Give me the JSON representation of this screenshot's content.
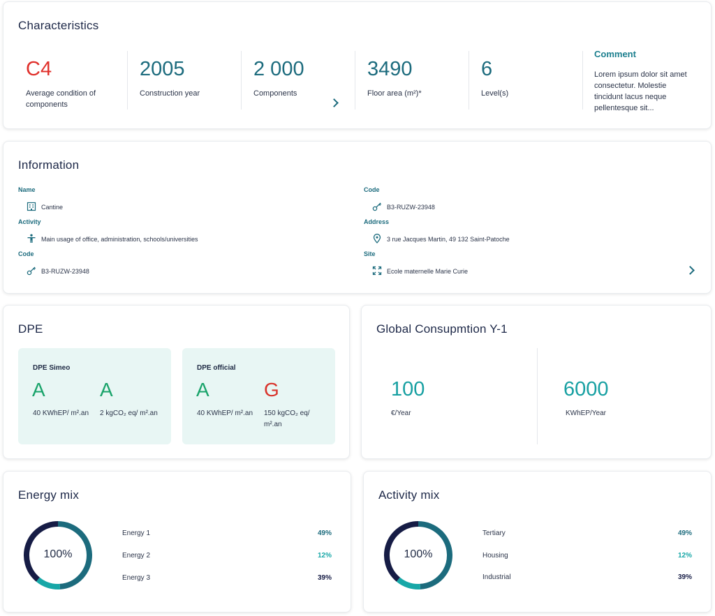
{
  "characteristics": {
    "title": "Characteristics",
    "stats": [
      {
        "value": "C4",
        "label": "Average condition of components"
      },
      {
        "value": "2005",
        "label": "Construction year"
      },
      {
        "value": "2 000",
        "label": "Components"
      },
      {
        "value": "3490",
        "label": "Floor area (m²)*"
      },
      {
        "value": "6",
        "label": "Level(s)"
      }
    ],
    "comment_title": "Comment",
    "comment_text": "Lorem ipsum dolor sit amet consectetur. Molestie tincidunt lacus neque pellentesque sit..."
  },
  "information": {
    "title": "Information",
    "left": [
      {
        "label": "Name",
        "value": "Cantine",
        "icon": "building-icon"
      },
      {
        "label": "Activity",
        "value": "Main usage of office, administration, schools/universities",
        "icon": "person-icon"
      },
      {
        "label": "Code",
        "value": "B3-RUZW-23948",
        "icon": "key-icon"
      }
    ],
    "right": [
      {
        "label": "Code",
        "value": "B3-RUZW-23948",
        "icon": "key-icon"
      },
      {
        "label": "Address",
        "value": "3 rue Jacques Martin, 49 132 Saint-Patoche",
        "icon": "location-pin-icon"
      },
      {
        "label": "Site",
        "value": "Ecole maternelle Marie Curie",
        "icon": "expand-icon"
      }
    ]
  },
  "dpe": {
    "title": "DPE",
    "boxes": [
      {
        "title": "DPE Simeo",
        "grade1": "A",
        "sub1": "40 KWhEP/ m².an",
        "grade2": "A",
        "sub2": "2 kgCO₂ eq/ m².an"
      },
      {
        "title": "DPE official",
        "grade1": "A",
        "sub1": "40 KWhEP/ m².an",
        "grade2": "G",
        "sub2": "150 kgCO₂ eq/ m².an"
      }
    ]
  },
  "consumption": {
    "title": "Global Consupmtion Y-1",
    "items": [
      {
        "value": "100",
        "label": "€/Year"
      },
      {
        "value": "6000",
        "label": "KWhEP/Year"
      }
    ]
  },
  "energy_mix": {
    "title": "Energy mix",
    "center": "100%",
    "items": [
      {
        "name": "Energy 1",
        "pct": "49%",
        "fraction": 0.49,
        "color": "#1c6b7d"
      },
      {
        "name": "Energy 2",
        "pct": "12%",
        "fraction": 0.12,
        "color": "#17a7a7"
      },
      {
        "name": "Energy 3",
        "pct": "39%",
        "fraction": 0.39,
        "color": "#161c45"
      }
    ]
  },
  "activity_mix": {
    "title": "Activity mix",
    "center": "100%",
    "items": [
      {
        "name": "Tertiary",
        "pct": "49%",
        "fraction": 0.49,
        "color": "#1c6b7d"
      },
      {
        "name": "Housing",
        "pct": "12%",
        "fraction": 0.12,
        "color": "#17a7a7"
      },
      {
        "name": "Industrial",
        "pct": "39%",
        "fraction": 0.39,
        "color": "#161c45"
      }
    ]
  }
}
